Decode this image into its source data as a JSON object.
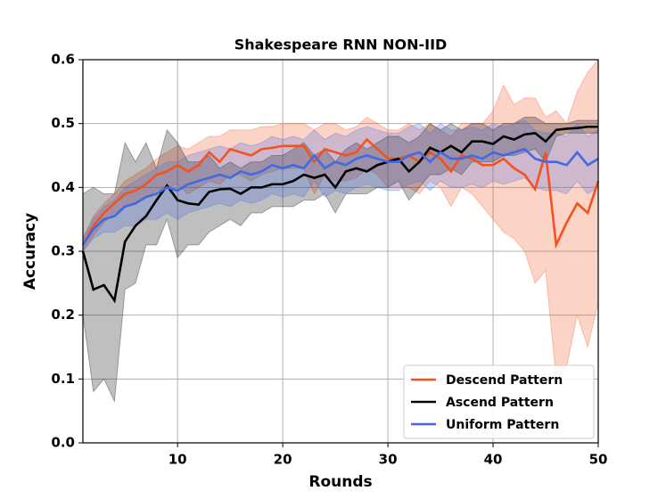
{
  "chart_data": {
    "type": "line",
    "title": "Shakespeare RNN NON-IID",
    "xlabel": "Rounds",
    "ylabel": "Accuracy",
    "x": [
      1,
      2,
      3,
      4,
      5,
      6,
      7,
      8,
      9,
      10,
      11,
      12,
      13,
      14,
      15,
      16,
      17,
      18,
      19,
      20,
      21,
      22,
      23,
      24,
      25,
      26,
      27,
      28,
      29,
      30,
      31,
      32,
      33,
      34,
      35,
      36,
      37,
      38,
      39,
      40,
      41,
      42,
      43,
      44,
      45,
      46,
      47,
      48,
      49,
      50
    ],
    "xlim": [
      1,
      50
    ],
    "xticks": [
      10,
      20,
      30,
      40,
      50
    ],
    "ylim": [
      0,
      0.6
    ],
    "yticks": [
      {
        "value": 0,
        "label": "0.0"
      },
      0.1,
      0.2,
      0.3,
      0.4,
      0.5,
      0.6
    ],
    "grid": true,
    "legend": "lower right",
    "series": [
      {
        "name": "Descend Pattern",
        "color": "#f4511e",
        "values": [
          0.31,
          0.34,
          0.36,
          0.375,
          0.39,
          0.395,
          0.405,
          0.42,
          0.425,
          0.435,
          0.425,
          0.435,
          0.455,
          0.44,
          0.46,
          0.455,
          0.45,
          0.46,
          0.462,
          0.465,
          0.465,
          0.465,
          0.44,
          0.46,
          0.455,
          0.45,
          0.455,
          0.475,
          0.46,
          0.445,
          0.445,
          0.45,
          0.44,
          0.455,
          0.445,
          0.425,
          0.45,
          0.445,
          0.435,
          0.435,
          0.445,
          0.43,
          0.42,
          0.397,
          0.455,
          0.31,
          0.345,
          0.375,
          0.36,
          0.41
        ],
        "upper": [
          0.32,
          0.355,
          0.375,
          0.39,
          0.41,
          0.42,
          0.43,
          0.445,
          0.455,
          0.465,
          0.46,
          0.47,
          0.48,
          0.48,
          0.49,
          0.49,
          0.49,
          0.495,
          0.495,
          0.5,
          0.5,
          0.5,
          0.49,
          0.5,
          0.5,
          0.49,
          0.495,
          0.51,
          0.5,
          0.49,
          0.49,
          0.5,
          0.49,
          0.5,
          0.49,
          0.48,
          0.5,
          0.5,
          0.5,
          0.52,
          0.56,
          0.53,
          0.54,
          0.54,
          0.51,
          0.52,
          0.5,
          0.55,
          0.58,
          0.6
        ],
        "lower": [
          0.3,
          0.325,
          0.345,
          0.36,
          0.37,
          0.375,
          0.385,
          0.395,
          0.4,
          0.405,
          0.39,
          0.4,
          0.41,
          0.405,
          0.42,
          0.42,
          0.41,
          0.42,
          0.425,
          0.43,
          0.43,
          0.43,
          0.39,
          0.42,
          0.41,
          0.41,
          0.415,
          0.43,
          0.42,
          0.4,
          0.4,
          0.4,
          0.39,
          0.41,
          0.4,
          0.37,
          0.4,
          0.39,
          0.37,
          0.35,
          0.33,
          0.32,
          0.3,
          0.25,
          0.27,
          0.1,
          0.12,
          0.2,
          0.15,
          0.22
        ]
      },
      {
        "name": "Ascend Pattern",
        "color": "#000000",
        "values": [
          0.3,
          0.24,
          0.247,
          0.223,
          0.315,
          0.34,
          0.355,
          0.38,
          0.403,
          0.38,
          0.375,
          0.373,
          0.393,
          0.397,
          0.398,
          0.39,
          0.4,
          0.4,
          0.405,
          0.405,
          0.41,
          0.42,
          0.415,
          0.42,
          0.4,
          0.425,
          0.43,
          0.425,
          0.435,
          0.44,
          0.445,
          0.425,
          0.44,
          0.462,
          0.455,
          0.465,
          0.455,
          0.472,
          0.472,
          0.468,
          0.48,
          0.475,
          0.483,
          0.485,
          0.472,
          0.49,
          0.492,
          0.493,
          0.495,
          0.495
        ],
        "upper": [
          0.39,
          0.4,
          0.39,
          0.39,
          0.47,
          0.44,
          0.47,
          0.43,
          0.49,
          0.47,
          0.44,
          0.44,
          0.45,
          0.43,
          0.44,
          0.43,
          0.44,
          0.44,
          0.45,
          0.45,
          0.46,
          0.47,
          0.45,
          0.46,
          0.44,
          0.46,
          0.47,
          0.46,
          0.47,
          0.48,
          0.48,
          0.47,
          0.48,
          0.5,
          0.49,
          0.5,
          0.49,
          0.5,
          0.5,
          0.49,
          0.5,
          0.5,
          0.51,
          0.51,
          0.5,
          0.5,
          0.5,
          0.505,
          0.505,
          0.505
        ],
        "lower": [
          0.2,
          0.08,
          0.1,
          0.065,
          0.24,
          0.25,
          0.31,
          0.31,
          0.35,
          0.29,
          0.31,
          0.31,
          0.33,
          0.34,
          0.35,
          0.34,
          0.36,
          0.36,
          0.37,
          0.37,
          0.37,
          0.38,
          0.38,
          0.39,
          0.36,
          0.39,
          0.39,
          0.39,
          0.4,
          0.4,
          0.41,
          0.38,
          0.4,
          0.42,
          0.42,
          0.43,
          0.42,
          0.44,
          0.44,
          0.44,
          0.45,
          0.45,
          0.455,
          0.46,
          0.44,
          0.48,
          0.485,
          0.485,
          0.485,
          0.485
        ]
      },
      {
        "name": "Uniform Pattern",
        "color": "#4169e1",
        "values": [
          0.31,
          0.335,
          0.35,
          0.355,
          0.37,
          0.375,
          0.385,
          0.39,
          0.4,
          0.395,
          0.405,
          0.41,
          0.415,
          0.42,
          0.415,
          0.425,
          0.42,
          0.425,
          0.435,
          0.43,
          0.435,
          0.43,
          0.45,
          0.43,
          0.44,
          0.435,
          0.445,
          0.45,
          0.445,
          0.44,
          0.44,
          0.45,
          0.455,
          0.44,
          0.455,
          0.445,
          0.445,
          0.45,
          0.445,
          0.455,
          0.45,
          0.455,
          0.46,
          0.445,
          0.44,
          0.44,
          0.435,
          0.455,
          0.435,
          0.445
        ],
        "upper": [
          0.32,
          0.35,
          0.37,
          0.38,
          0.4,
          0.41,
          0.42,
          0.43,
          0.44,
          0.44,
          0.45,
          0.455,
          0.46,
          0.465,
          0.46,
          0.47,
          0.465,
          0.47,
          0.48,
          0.475,
          0.48,
          0.475,
          0.49,
          0.475,
          0.485,
          0.48,
          0.49,
          0.495,
          0.49,
          0.485,
          0.485,
          0.495,
          0.5,
          0.485,
          0.5,
          0.49,
          0.49,
          0.495,
          0.49,
          0.5,
          0.495,
          0.5,
          0.505,
          0.49,
          0.485,
          0.485,
          0.48,
          0.5,
          0.48,
          0.49
        ],
        "lower": [
          0.3,
          0.32,
          0.33,
          0.33,
          0.34,
          0.34,
          0.35,
          0.35,
          0.36,
          0.35,
          0.36,
          0.365,
          0.37,
          0.375,
          0.37,
          0.38,
          0.375,
          0.38,
          0.39,
          0.385,
          0.39,
          0.385,
          0.41,
          0.385,
          0.395,
          0.39,
          0.4,
          0.405,
          0.4,
          0.395,
          0.395,
          0.405,
          0.41,
          0.395,
          0.41,
          0.4,
          0.4,
          0.405,
          0.4,
          0.41,
          0.405,
          0.41,
          0.415,
          0.4,
          0.395,
          0.395,
          0.39,
          0.41,
          0.39,
          0.4
        ]
      }
    ]
  }
}
